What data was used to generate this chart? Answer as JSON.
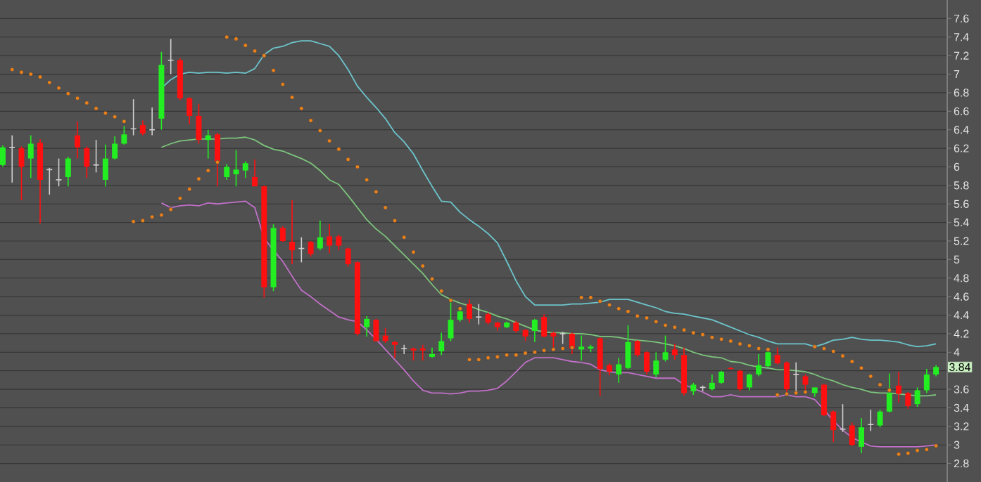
{
  "chart_data": {
    "type": "candlestick",
    "categories": [
      null,
      null,
      null,
      null,
      null,
      null,
      null,
      null,
      null,
      null,
      null,
      null,
      null,
      null,
      null,
      null,
      null,
      null,
      null,
      null,
      null,
      null,
      null,
      null,
      null,
      null,
      null,
      null,
      null,
      null,
      null,
      null,
      null,
      null,
      null,
      null,
      null,
      null,
      null,
      null,
      null,
      null,
      null,
      null,
      null,
      null,
      null,
      null,
      null,
      null,
      null,
      null,
      null,
      null,
      null,
      null,
      null,
      null,
      null,
      null,
      null,
      null,
      null,
      null,
      null,
      null,
      null,
      null,
      null,
      null,
      null,
      null,
      null,
      null,
      null,
      null,
      null,
      null,
      null,
      null,
      null,
      null,
      null,
      null,
      null,
      null,
      null,
      null,
      null,
      null,
      null,
      null,
      null,
      null,
      null,
      null,
      null,
      null,
      null,
      null,
      null
    ],
    "ohlc": [
      [
        6.02,
        6.23,
        6.0,
        6.21
      ],
      [
        6.21,
        6.34,
        5.83,
        6.21
      ],
      [
        6.2,
        6.22,
        5.64,
        6.0
      ],
      [
        6.09,
        6.34,
        5.88,
        6.25
      ],
      [
        6.26,
        6.3,
        5.39,
        5.86
      ],
      [
        5.97,
        5.99,
        5.7,
        5.97
      ],
      [
        5.86,
        6.09,
        5.79,
        5.86
      ],
      [
        5.89,
        6.11,
        5.79,
        6.09
      ],
      [
        6.34,
        6.49,
        6.09,
        6.21
      ],
      [
        6.2,
        6.22,
        5.88,
        6.0
      ],
      [
        6.02,
        6.29,
        5.94,
        6.02
      ],
      [
        5.86,
        6.24,
        5.79,
        6.09
      ],
      [
        6.09,
        6.33,
        6.08,
        6.25
      ],
      [
        6.25,
        6.44,
        6.24,
        6.35
      ],
      [
        6.41,
        6.73,
        6.34,
        6.41
      ],
      [
        6.45,
        6.5,
        6.34,
        6.36
      ],
      [
        6.4,
        6.64,
        6.34,
        6.4
      ],
      [
        6.52,
        7.24,
        6.4,
        7.1
      ],
      [
        7.15,
        7.38,
        7.0,
        7.15
      ],
      [
        7.15,
        7.17,
        6.72,
        6.74
      ],
      [
        6.74,
        6.75,
        6.46,
        6.55
      ],
      [
        6.55,
        6.68,
        6.25,
        6.29
      ],
      [
        6.29,
        6.4,
        6.09,
        6.34
      ],
      [
        6.35,
        6.37,
        5.79,
        6.06
      ],
      [
        5.89,
        6.03,
        5.86,
        6.0
      ],
      [
        5.92,
        6.18,
        5.79,
        5.97
      ],
      [
        5.96,
        6.06,
        5.88,
        6.04
      ],
      [
        5.89,
        6.08,
        5.79,
        5.79
      ],
      [
        5.79,
        5.8,
        4.59,
        4.7
      ],
      [
        4.7,
        5.38,
        4.66,
        5.34
      ],
      [
        5.34,
        5.36,
        5.19,
        5.2
      ],
      [
        5.19,
        5.64,
        4.95,
        5.1
      ],
      [
        5.12,
        5.24,
        4.97,
        5.12
      ],
      [
        5.19,
        5.2,
        5.03,
        5.06
      ],
      [
        5.12,
        5.42,
        5.1,
        5.24
      ],
      [
        5.25,
        5.38,
        5.07,
        5.15
      ],
      [
        5.25,
        5.27,
        5.1,
        5.15
      ],
      [
        5.12,
        5.13,
        4.92,
        4.95
      ],
      [
        4.97,
        4.98,
        4.18,
        4.2
      ],
      [
        4.27,
        4.39,
        4.17,
        4.36
      ],
      [
        4.35,
        4.36,
        4.12,
        4.12
      ],
      [
        4.18,
        4.26,
        4.1,
        4.12
      ],
      [
        4.11,
        4.12,
        3.94,
        4.08
      ],
      [
        4.04,
        4.08,
        3.98,
        4.04
      ],
      [
        4.04,
        4.05,
        3.91,
        4.02
      ],
      [
        4.04,
        4.08,
        3.91,
        4.02
      ],
      [
        3.95,
        4.05,
        3.94,
        3.98
      ],
      [
        4.01,
        4.21,
        3.97,
        4.12
      ],
      [
        4.15,
        4.57,
        4.12,
        4.35
      ],
      [
        4.35,
        4.47,
        4.33,
        4.44
      ],
      [
        4.52,
        4.57,
        4.32,
        4.36
      ],
      [
        4.38,
        4.52,
        4.3,
        4.38
      ],
      [
        4.41,
        4.43,
        4.3,
        4.32
      ],
      [
        4.32,
        4.33,
        4.23,
        4.27
      ],
      [
        4.27,
        4.33,
        4.26,
        4.32
      ],
      [
        4.32,
        4.34,
        4.21,
        4.23
      ],
      [
        4.24,
        4.25,
        4.12,
        4.17
      ],
      [
        4.23,
        4.36,
        4.11,
        4.35
      ],
      [
        4.38,
        4.41,
        4.16,
        4.17
      ],
      [
        4.21,
        4.22,
        4.04,
        4.17
      ],
      [
        4.2,
        4.22,
        4.09,
        4.2
      ],
      [
        4.2,
        4.21,
        3.98,
        4.04
      ],
      [
        4.03,
        4.18,
        3.91,
        4.06
      ],
      [
        4.04,
        4.08,
        4.0,
        4.06
      ],
      [
        4.15,
        4.16,
        3.53,
        3.82
      ],
      [
        3.86,
        3.88,
        3.75,
        3.79
      ],
      [
        3.76,
        3.94,
        3.67,
        3.87
      ],
      [
        3.83,
        4.29,
        3.82,
        4.11
      ],
      [
        4.12,
        4.13,
        3.95,
        3.97
      ],
      [
        4.0,
        4.01,
        3.76,
        3.79
      ],
      [
        3.76,
        4.0,
        3.73,
        3.91
      ],
      [
        3.92,
        4.18,
        3.9,
        4.0
      ],
      [
        4.03,
        4.09,
        3.92,
        3.97
      ],
      [
        3.97,
        4.05,
        3.53,
        3.56
      ],
      [
        3.58,
        3.67,
        3.54,
        3.65
      ],
      [
        3.62,
        3.64,
        3.58,
        3.62
      ],
      [
        3.6,
        3.76,
        3.59,
        3.67
      ],
      [
        3.67,
        3.8,
        3.66,
        3.79
      ],
      [
        3.83,
        3.84,
        3.81,
        3.82
      ],
      [
        3.8,
        3.81,
        3.58,
        3.6
      ],
      [
        3.62,
        3.77,
        3.59,
        3.76
      ],
      [
        3.76,
        3.98,
        3.74,
        3.86
      ],
      [
        3.85,
        4.01,
        3.84,
        4.0
      ],
      [
        3.97,
        4.05,
        3.87,
        3.88
      ],
      [
        3.89,
        3.9,
        3.56,
        3.6
      ],
      [
        3.76,
        3.89,
        3.56,
        3.76
      ],
      [
        3.74,
        3.76,
        3.56,
        3.65
      ],
      [
        3.56,
        3.62,
        3.52,
        3.62
      ],
      [
        3.65,
        3.66,
        3.31,
        3.32
      ],
      [
        3.36,
        3.37,
        3.03,
        3.16
      ],
      [
        3.17,
        3.44,
        3.14,
        3.17
      ],
      [
        3.21,
        3.24,
        2.99,
        3.0
      ],
      [
        2.98,
        3.29,
        2.91,
        3.19
      ],
      [
        3.22,
        3.38,
        3.15,
        3.22
      ],
      [
        3.21,
        3.38,
        3.19,
        3.36
      ],
      [
        3.36,
        3.77,
        3.35,
        3.56
      ],
      [
        3.64,
        3.79,
        3.46,
        3.55
      ],
      [
        3.56,
        3.57,
        3.39,
        3.42
      ],
      [
        3.44,
        3.62,
        3.41,
        3.59
      ],
      [
        3.59,
        3.82,
        3.56,
        3.76
      ],
      [
        3.76,
        3.86,
        3.74,
        3.84
      ]
    ],
    "colors": [
      "#22ee22",
      "#d0d0d0",
      "#ff1010",
      "#22ee22",
      "#ff1010",
      "#d0d0d0",
      "#d0d0d0",
      "#22ee22",
      "#ff1010",
      "#ff1010",
      "#d0d0d0",
      "#22ee22",
      "#22ee22",
      "#22ee22",
      "#d0d0d0",
      "#ff1010",
      "#d0d0d0",
      "#22ee22",
      "#d0d0d0",
      "#ff1010",
      "#ff1010",
      "#ff1010",
      "#22ee22",
      "#ff1010",
      "#22ee22",
      "#22ee22",
      "#22ee22",
      "#ff1010",
      "#ff1010",
      "#22ee22",
      "#ff1010",
      "#ff1010",
      "#d0d0d0",
      "#ff1010",
      "#22ee22",
      "#ff1010",
      "#ff1010",
      "#ff1010",
      "#ff1010",
      "#22ee22",
      "#ff1010",
      "#ff1010",
      "#ff1010",
      "#d0d0d0",
      "#ff1010",
      "#ff1010",
      "#22ee22",
      "#22ee22",
      "#22ee22",
      "#22ee22",
      "#ff1010",
      "#d0d0d0",
      "#ff1010",
      "#ff1010",
      "#22ee22",
      "#ff1010",
      "#ff1010",
      "#22ee22",
      "#ff1010",
      "#ff1010",
      "#d0d0d0",
      "#ff1010",
      "#22ee22",
      "#22ee22",
      "#ff1010",
      "#ff1010",
      "#22ee22",
      "#22ee22",
      "#ff1010",
      "#ff1010",
      "#22ee22",
      "#22ee22",
      "#ff1010",
      "#ff1010",
      "#22ee22",
      "#d0d0d0",
      "#22ee22",
      "#22ee22",
      "#ff1010",
      "#ff1010",
      "#22ee22",
      "#22ee22",
      "#22ee22",
      "#ff1010",
      "#ff1010",
      "#d0d0d0",
      "#ff1010",
      "#22ee22",
      "#ff1010",
      "#ff1010",
      "#d0d0d0",
      "#ff1010",
      "#22ee22",
      "#d0d0d0",
      "#22ee22",
      "#22ee22",
      "#ff1010",
      "#ff1010",
      "#22ee22",
      "#22ee22",
      "#22ee22"
    ],
    "series": [
      {
        "type": "line",
        "color": "#6cc5cc",
        "values": [
          null,
          null,
          null,
          null,
          null,
          null,
          null,
          null,
          null,
          null,
          null,
          null,
          null,
          null,
          null,
          null,
          null,
          6.85,
          6.94,
          7.0,
          7.02,
          7.01,
          7.02,
          7.02,
          7.01,
          7.02,
          7.01,
          7.06,
          7.21,
          7.28,
          7.3,
          7.34,
          7.36,
          7.36,
          7.33,
          7.3,
          7.2,
          7.05,
          6.87,
          6.75,
          6.64,
          6.52,
          6.37,
          6.27,
          6.14,
          5.96,
          5.79,
          5.63,
          5.62,
          5.51,
          5.43,
          5.36,
          5.28,
          5.18,
          4.98,
          4.77,
          4.6,
          4.51,
          4.51,
          4.51,
          4.51,
          4.52,
          4.52,
          4.53,
          4.54,
          4.57,
          4.57,
          4.57,
          4.54,
          4.51,
          4.48,
          4.44,
          4.42,
          4.41,
          4.39,
          4.37,
          4.35,
          4.31,
          4.27,
          4.23,
          4.19,
          4.16,
          4.12,
          4.09,
          4.09,
          4.09,
          4.09,
          4.06,
          4.09,
          4.13,
          4.14,
          4.16,
          4.14,
          4.13,
          4.13,
          4.12,
          4.11,
          4.08,
          4.06,
          4.07,
          4.09
        ]
      },
      {
        "type": "line",
        "color": "#7cc47c",
        "values": [
          null,
          null,
          null,
          null,
          null,
          null,
          null,
          null,
          null,
          null,
          null,
          null,
          null,
          null,
          null,
          null,
          null,
          6.21,
          6.25,
          6.28,
          6.29,
          6.3,
          6.3,
          6.3,
          6.31,
          6.31,
          6.32,
          6.29,
          6.23,
          6.19,
          6.17,
          6.13,
          6.09,
          6.04,
          5.96,
          5.86,
          5.81,
          5.69,
          5.56,
          5.43,
          5.33,
          5.25,
          5.15,
          5.05,
          4.95,
          4.85,
          4.73,
          4.62,
          4.57,
          4.53,
          4.5,
          4.46,
          4.43,
          4.39,
          4.36,
          4.32,
          4.28,
          4.24,
          4.22,
          4.21,
          4.21,
          4.2,
          4.2,
          4.19,
          4.17,
          4.17,
          4.16,
          4.14,
          4.13,
          4.12,
          4.11,
          4.09,
          4.07,
          4.04,
          4.0,
          3.97,
          3.95,
          3.94,
          3.9,
          3.89,
          3.86,
          3.84,
          3.83,
          3.81,
          3.81,
          3.8,
          3.79,
          3.76,
          3.72,
          3.69,
          3.65,
          3.62,
          3.6,
          3.57,
          3.56,
          3.56,
          3.55,
          3.54,
          3.53,
          3.53,
          3.54
        ]
      },
      {
        "type": "line",
        "color": "#c070c8",
        "values": [
          null,
          null,
          null,
          null,
          null,
          null,
          null,
          null,
          null,
          null,
          null,
          null,
          null,
          null,
          null,
          null,
          null,
          5.61,
          5.56,
          5.58,
          5.59,
          5.58,
          5.61,
          5.6,
          5.61,
          5.62,
          5.63,
          5.56,
          5.23,
          5.1,
          4.98,
          4.82,
          4.67,
          4.6,
          4.52,
          4.45,
          4.38,
          4.35,
          4.33,
          4.24,
          4.14,
          4.03,
          3.92,
          3.81,
          3.69,
          3.59,
          3.56,
          3.56,
          3.55,
          3.56,
          3.58,
          3.58,
          3.59,
          3.61,
          3.69,
          3.79,
          3.89,
          3.94,
          3.94,
          3.94,
          3.92,
          3.9,
          3.89,
          3.87,
          3.81,
          3.79,
          3.78,
          3.78,
          3.76,
          3.74,
          3.72,
          3.72,
          3.72,
          3.65,
          3.61,
          3.57,
          3.52,
          3.52,
          3.54,
          3.52,
          3.52,
          3.52,
          3.52,
          3.52,
          3.54,
          3.52,
          3.52,
          3.49,
          3.38,
          3.26,
          3.16,
          3.08,
          3.03,
          2.99,
          2.98,
          2.98,
          2.98,
          2.98,
          2.98,
          2.99,
          3.0
        ]
      },
      {
        "type": "scatter",
        "color": "#e8801c",
        "marker": "circle",
        "values": [
          null,
          7.05,
          7.02,
          7.0,
          6.97,
          6.91,
          6.85,
          6.79,
          6.74,
          6.69,
          6.63,
          6.58,
          6.54,
          6.49,
          5.41,
          5.42,
          5.46,
          5.48,
          5.54,
          5.66,
          5.76,
          5.87,
          5.96,
          6.05,
          7.4,
          7.38,
          7.31,
          7.25,
          7.2,
          7.04,
          6.89,
          6.75,
          6.63,
          6.5,
          6.39,
          6.28,
          6.19,
          6.08,
          6.0,
          5.86,
          5.73,
          5.56,
          5.42,
          5.24,
          5.08,
          4.93,
          4.79,
          4.66,
          4.56,
          4.47,
          3.92,
          3.92,
          3.94,
          3.95,
          3.97,
          3.97,
          3.99,
          4.0,
          4.02,
          4.03,
          4.04,
          4.05,
          4.59,
          4.59,
          4.55,
          4.51,
          4.47,
          4.44,
          4.39,
          4.37,
          4.33,
          4.29,
          4.27,
          4.24,
          4.21,
          4.19,
          4.16,
          4.14,
          4.12,
          4.09,
          4.07,
          4.04,
          4.03,
          3.54,
          3.55,
          3.56,
          3.57,
          4.06,
          4.04,
          4.01,
          3.96,
          3.9,
          3.83,
          3.74,
          3.65,
          3.59,
          2.9,
          2.91,
          2.94,
          2.95,
          2.99
        ]
      }
    ],
    "ylim": [
      2.6,
      7.8
    ],
    "yticks": [
      2.8,
      3,
      3.2,
      3.4,
      3.6,
      {
        "value": 3.8,
        "label": null
      },
      4,
      4.2,
      4.4,
      4.6,
      4.8,
      5,
      5.2,
      5.4,
      5.6,
      5.8,
      6,
      6.2,
      6.4,
      6.6,
      6.8,
      7,
      7.2,
      7.4,
      7.6
    ],
    "grid": true,
    "tick_labels": "y",
    "annotations": [
      {
        "text": "3.84",
        "y": 3.84
      }
    ]
  }
}
